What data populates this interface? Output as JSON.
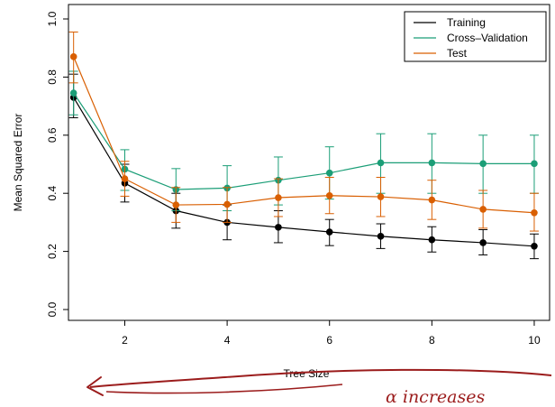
{
  "chart_data": {
    "type": "line",
    "xlabel": "Tree Size",
    "ylabel": "Mean Squared Error",
    "xlim": [
      0.9,
      10.3
    ],
    "ylim": [
      0.0,
      1.0
    ],
    "xticks": [
      2,
      4,
      6,
      8,
      10
    ],
    "yticks": [
      0.0,
      0.2,
      0.4,
      0.6,
      0.8,
      1.0
    ],
    "ytick_labels": [
      "0.0",
      "0.2",
      "0.4",
      "0.6",
      "0.8",
      "1.0"
    ],
    "grid": false,
    "legend_position": "top-right",
    "x": [
      1,
      2,
      3,
      4,
      5,
      6,
      7,
      8,
      9,
      10
    ],
    "series": [
      {
        "name": "Training",
        "color": "#000000",
        "values": [
          0.73,
          0.435,
          0.34,
          0.3,
          0.283,
          0.267,
          0.252,
          0.24,
          0.23,
          0.218
        ],
        "err_low": [
          0.66,
          0.37,
          0.28,
          0.24,
          0.23,
          0.22,
          0.21,
          0.198,
          0.188,
          0.175
        ],
        "err_high": [
          0.81,
          0.5,
          0.4,
          0.36,
          0.34,
          0.31,
          0.295,
          0.285,
          0.275,
          0.26
        ]
      },
      {
        "name": "Cross–Validation",
        "color": "#1b9e77",
        "values": [
          0.745,
          0.483,
          0.413,
          0.418,
          0.445,
          0.47,
          0.505,
          0.505,
          0.502,
          0.502
        ],
        "err_low": [
          0.67,
          0.41,
          0.34,
          0.34,
          0.36,
          0.38,
          0.4,
          0.4,
          0.4,
          0.4
        ],
        "err_high": [
          0.82,
          0.55,
          0.485,
          0.495,
          0.525,
          0.56,
          0.605,
          0.605,
          0.6,
          0.6
        ]
      },
      {
        "name": "Test",
        "color": "#d95f02",
        "values": [
          0.87,
          0.45,
          0.36,
          0.362,
          0.385,
          0.392,
          0.388,
          0.377,
          0.345,
          0.333
        ],
        "err_low": [
          0.78,
          0.39,
          0.3,
          0.3,
          0.32,
          0.33,
          0.32,
          0.31,
          0.28,
          0.27
        ],
        "err_high": [
          0.955,
          0.51,
          0.42,
          0.42,
          0.45,
          0.455,
          0.455,
          0.445,
          0.41,
          0.4
        ]
      }
    ],
    "annotation": {
      "text": "α increases",
      "color": "#9b1c1c"
    }
  }
}
